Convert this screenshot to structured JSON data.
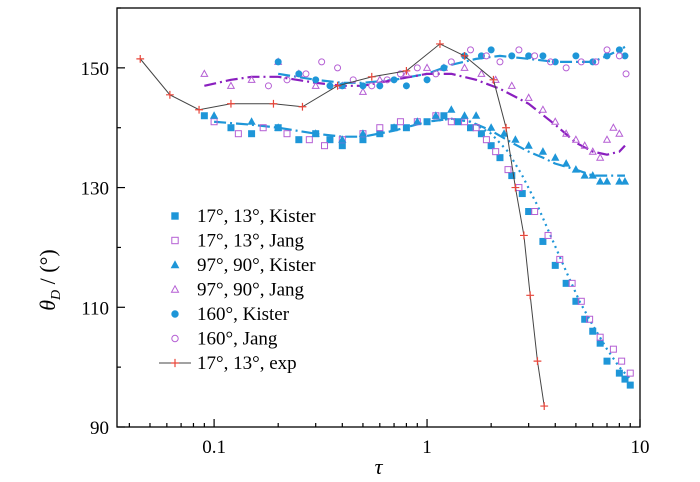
{
  "chart_data": {
    "type": "scatter",
    "xscale": "log",
    "xlim": [
      0.035,
      10
    ],
    "ylim": [
      90,
      160
    ],
    "xticks": [
      0.1,
      1,
      10
    ],
    "xtick_labels": [
      "0.1",
      "1",
      "10"
    ],
    "yticks": [
      90,
      110,
      130,
      150
    ],
    "ytick_labels": [
      "90",
      "110",
      "130",
      "150"
    ],
    "xlabel": "τ",
    "ylabel": {
      "main": "θ",
      "sub": "D",
      "rest": " / (°)"
    },
    "grid": false,
    "legend_position": "left-center",
    "colors": {
      "blue": "#1e96d8",
      "purple": "#b55fd4",
      "red": "#e8463a",
      "dark_purple": "#8a1fbf"
    },
    "series": [
      {
        "name": "17°, 13°, Kister",
        "marker": "square",
        "filled": true,
        "color": "#1e96d8",
        "x": [
          0.09,
          0.12,
          0.15,
          0.2,
          0.25,
          0.3,
          0.35,
          0.4,
          0.5,
          0.6,
          0.7,
          0.8,
          1.0,
          1.2,
          1.4,
          1.6,
          1.8,
          2.0,
          2.2,
          2.5,
          2.8,
          3.0,
          3.5,
          4.0,
          4.5,
          5.0,
          5.5,
          6.0,
          6.5,
          7.0,
          8.0,
          8.5,
          9.0
        ],
        "y": [
          142,
          140,
          139,
          140,
          138,
          139,
          138,
          137,
          138,
          139,
          140,
          140,
          141,
          142,
          141,
          140,
          139,
          137,
          135,
          132,
          129,
          126,
          121,
          117,
          114,
          111,
          108,
          106,
          104,
          101,
          99,
          98,
          97
        ]
      },
      {
        "name": "17°, 13°, Jang",
        "marker": "square",
        "filled": false,
        "color": "#b55fd4",
        "x": [
          0.1,
          0.13,
          0.17,
          0.22,
          0.28,
          0.33,
          0.4,
          0.5,
          0.6,
          0.75,
          0.9,
          1.1,
          1.3,
          1.5,
          1.7,
          1.9,
          2.1,
          2.4,
          2.7,
          3.2,
          3.7,
          4.2,
          4.8,
          5.3,
          5.8,
          6.5,
          7.5,
          8.2,
          9.0
        ],
        "y": [
          141,
          139,
          140,
          139,
          138,
          137,
          138,
          139,
          140,
          141,
          141,
          142,
          141,
          141,
          140,
          138,
          136,
          133,
          130,
          126,
          122,
          118,
          114,
          111,
          108,
          105,
          103,
          101,
          99
        ]
      },
      {
        "name": "97°, 90°, Kister",
        "marker": "triangle",
        "filled": true,
        "color": "#1e96d8",
        "x": [
          0.1,
          0.15,
          0.2,
          0.3,
          0.4,
          0.5,
          0.7,
          0.9,
          1.1,
          1.3,
          1.5,
          1.7,
          2.0,
          2.3,
          2.6,
          3.0,
          3.5,
          4.0,
          4.5,
          5.0,
          5.5,
          6.0,
          6.5,
          7.0,
          8.0,
          8.5
        ],
        "y": [
          142,
          141,
          140,
          139,
          138,
          139,
          140,
          141,
          142,
          143,
          142,
          142,
          140,
          139,
          138,
          137,
          136,
          135,
          134,
          133,
          132,
          132,
          131,
          131,
          131,
          131
        ]
      },
      {
        "name": "97°, 90°, Jang",
        "marker": "triangle",
        "filled": false,
        "color": "#b55fd4",
        "x": [
          0.09,
          0.12,
          0.15,
          0.2,
          0.25,
          0.3,
          0.4,
          0.5,
          0.6,
          0.8,
          1.0,
          1.2,
          1.5,
          1.8,
          2.1,
          2.5,
          3.0,
          3.5,
          4.0,
          4.5,
          5.0,
          5.5,
          6.0,
          6.5,
          7.0,
          7.5,
          8.0
        ],
        "y": [
          149,
          147,
          148,
          151,
          149,
          147,
          147,
          146,
          148,
          149,
          150,
          150,
          150,
          149,
          148,
          147,
          145,
          143,
          141,
          139,
          138,
          137,
          136,
          135,
          138,
          140,
          139
        ]
      },
      {
        "name": "160°, Kister",
        "marker": "circle",
        "filled": true,
        "color": "#1e96d8",
        "x": [
          0.2,
          0.25,
          0.3,
          0.35,
          0.4,
          0.5,
          0.6,
          0.7,
          0.8,
          1.0,
          1.2,
          1.5,
          1.8,
          2.0,
          2.5,
          3.0,
          3.5,
          4.0,
          5.0,
          6.0,
          7.0,
          8.0,
          8.5
        ],
        "y": [
          151,
          149,
          148,
          147,
          147,
          147,
          147,
          148,
          147,
          148,
          150,
          152,
          152,
          153,
          152,
          152,
          152,
          151,
          152,
          151,
          152,
          153,
          152
        ]
      },
      {
        "name": "160°, Jang",
        "marker": "circle",
        "filled": false,
        "color": "#b55fd4",
        "x": [
          0.18,
          0.22,
          0.27,
          0.32,
          0.38,
          0.45,
          0.55,
          0.65,
          0.75,
          0.9,
          1.1,
          1.3,
          1.6,
          1.9,
          2.2,
          2.7,
          3.2,
          3.8,
          4.5,
          5.3,
          6.2,
          7.0,
          8.0,
          8.6
        ],
        "y": [
          147,
          148,
          149,
          151,
          150,
          148,
          147,
          148,
          149,
          150,
          149,
          151,
          153,
          152,
          151,
          153,
          152,
          151,
          150,
          151,
          151,
          153,
          152,
          149
        ]
      },
      {
        "name": "17°, 13°, exp",
        "marker": "plus",
        "filled": false,
        "color": "#e8463a",
        "line": true,
        "x": [
          0.045,
          0.062,
          0.085,
          0.12,
          0.19,
          0.26,
          0.38,
          0.55,
          0.8,
          1.15,
          1.5,
          2.05,
          2.35,
          2.6,
          2.85,
          3.05,
          3.3,
          3.55
        ],
        "y": [
          151.5,
          145.5,
          143,
          144,
          144,
          143.5,
          147,
          148.5,
          149.5,
          154,
          152,
          148,
          140,
          130,
          122,
          112,
          101,
          93.5
        ]
      }
    ],
    "fit_lines": [
      {
        "style": "dash-dot",
        "color": "#1e96d8",
        "x": [
          0.1,
          0.15,
          0.2,
          0.3,
          0.4,
          0.5,
          0.7,
          1.0,
          1.3,
          1.6,
          2.0,
          2.5,
          3.0,
          3.5,
          4.0,
          5.0,
          6.0,
          7.0,
          8.0,
          8.5
        ],
        "y": [
          141,
          140.5,
          140,
          139,
          138.5,
          138.5,
          139.5,
          141,
          141.5,
          141,
          139.5,
          137.5,
          136,
          135,
          134,
          133,
          132,
          132,
          132,
          132
        ]
      },
      {
        "style": "dash-dot",
        "color": "#1e96d8",
        "x": [
          0.2,
          0.3,
          0.4,
          0.5,
          0.7,
          1.0,
          1.3,
          1.7,
          2.2,
          3.0,
          4.0,
          5.0,
          6.0,
          7.0,
          8.0,
          8.5
        ],
        "y": [
          149,
          148,
          147.5,
          147.5,
          148,
          149,
          150.5,
          151.5,
          152,
          151.5,
          151,
          151,
          151,
          152,
          153,
          153.5
        ]
      },
      {
        "style": "dash-dot",
        "color": "#8a1fbf",
        "x": [
          0.09,
          0.12,
          0.15,
          0.2,
          0.3,
          0.4,
          0.5,
          0.7,
          1.0,
          1.3,
          1.7,
          2.2,
          3.0,
          4.0,
          5.0,
          6.0,
          7.0,
          8.0,
          8.5
        ],
        "y": [
          147,
          148,
          148.5,
          148.5,
          147.5,
          147,
          147,
          148,
          149,
          149,
          148,
          146.5,
          144,
          140.5,
          137.5,
          136,
          135.5,
          136,
          137
        ]
      },
      {
        "style": "dot",
        "color": "#1e96d8",
        "x": [
          1.0,
          1.3,
          1.6,
          2.0,
          2.4,
          2.8,
          3.3,
          3.8,
          4.5,
          5.2,
          6.0,
          7.0,
          8.0,
          9.0
        ],
        "y": [
          141,
          141.5,
          141,
          139,
          136,
          132,
          127,
          122,
          116,
          111,
          107,
          103,
          100,
          98
        ]
      }
    ]
  }
}
